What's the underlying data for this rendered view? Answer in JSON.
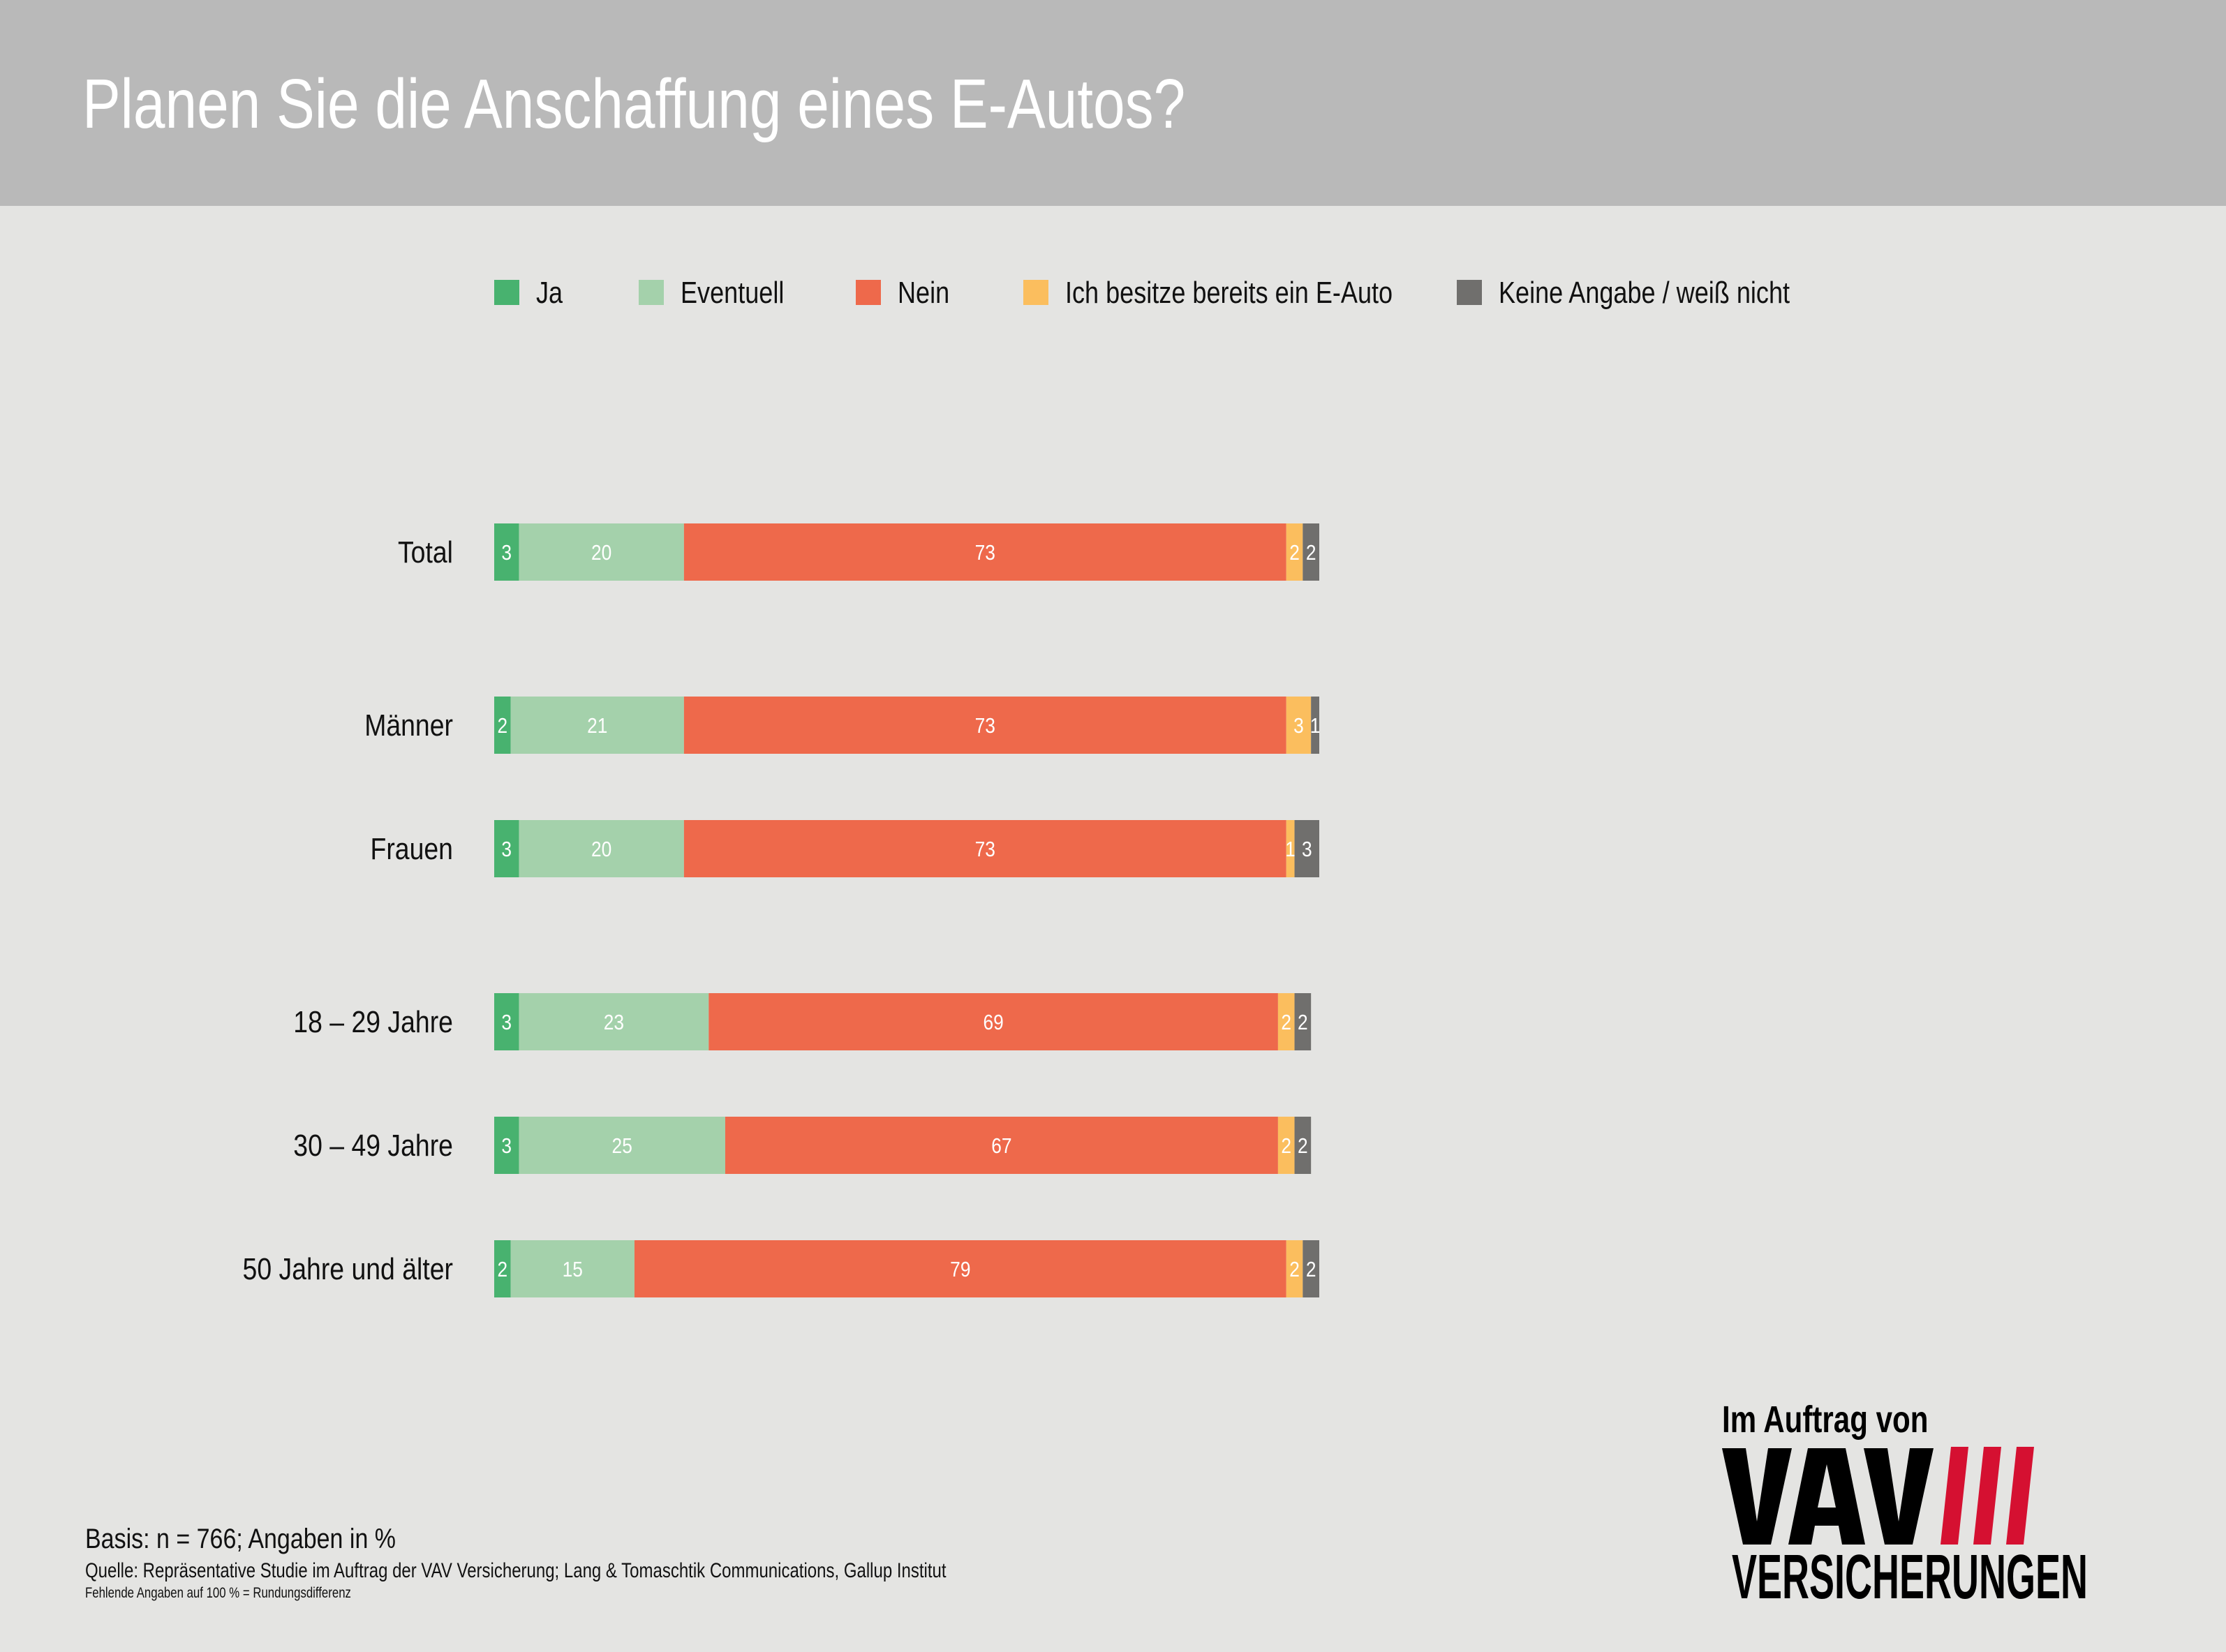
{
  "header": {
    "title": "Planen Sie die Anschaffung eines E-Autos?"
  },
  "colors": {
    "header_bg": "#b9b9b9",
    "background": "#e4e4e2",
    "logo_red": "#d51031"
  },
  "chart_data": {
    "type": "bar",
    "orientation": "horizontal",
    "stacked": true,
    "unit": "%",
    "legend_position": "top",
    "categories": [
      "Total",
      "Männer",
      "Frauen",
      "18 – 29 Jahre",
      "30 – 49 Jahre",
      "50 Jahre und älter"
    ],
    "series": [
      {
        "name": "Ja",
        "color": "#48b26f",
        "values": [
          3,
          2,
          3,
          3,
          3,
          2
        ]
      },
      {
        "name": "Eventuell",
        "color": "#a4d1ab",
        "values": [
          20,
          21,
          20,
          23,
          25,
          15
        ]
      },
      {
        "name": "Nein",
        "color": "#ee694b",
        "values": [
          73,
          73,
          73,
          69,
          67,
          79
        ]
      },
      {
        "name": "Ich besitze bereits ein E-Auto",
        "color": "#fbbe5e",
        "values": [
          2,
          3,
          1,
          2,
          2,
          2
        ]
      },
      {
        "name": "Keine Angabe / weiß nicht",
        "color": "#706f6d",
        "values": [
          2,
          1,
          3,
          2,
          2,
          2
        ]
      }
    ]
  },
  "footer": {
    "basis": "Basis: n = 766; Angaben in %",
    "source": "Quelle: Repräsentative Studie im Auftrag der VAV Versicherung; Lang & Tomaschtik Communications, Gallup Institut",
    "note": "Fehlende Angaben auf 100 % = Rundungsdifferenz"
  },
  "logo": {
    "tagline": "Im Auftrag von",
    "brand": "VAV",
    "subbrand": "VERSICHERUNGEN"
  }
}
